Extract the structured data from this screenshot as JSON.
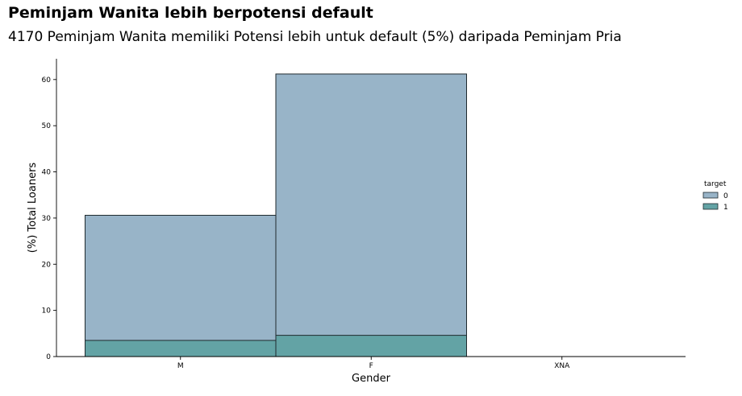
{
  "chart_data": {
    "type": "bar",
    "title": "Peminjam Wanita lebih berpotensi default",
    "subtitle": "4170 Peminjam Wanita memiliki Potensi lebih untuk default (5%) daripada Peminjam Pria",
    "xlabel": "Gender",
    "ylabel": "(%) Total Loaners",
    "categories": [
      "M",
      "F",
      "XNA"
    ],
    "ylim": [
      0,
      64.5
    ],
    "yticks": [
      0,
      10,
      20,
      30,
      40,
      50,
      60
    ],
    "series": [
      {
        "name": "0",
        "values": [
          30.6,
          61.2,
          0.0
        ],
        "color": "#98b4c8"
      },
      {
        "name": "1",
        "values": [
          3.5,
          4.6,
          0.0
        ],
        "color": "#63a3a5"
      }
    ],
    "legend": {
      "title": "target",
      "position": "right"
    },
    "grid": false
  }
}
